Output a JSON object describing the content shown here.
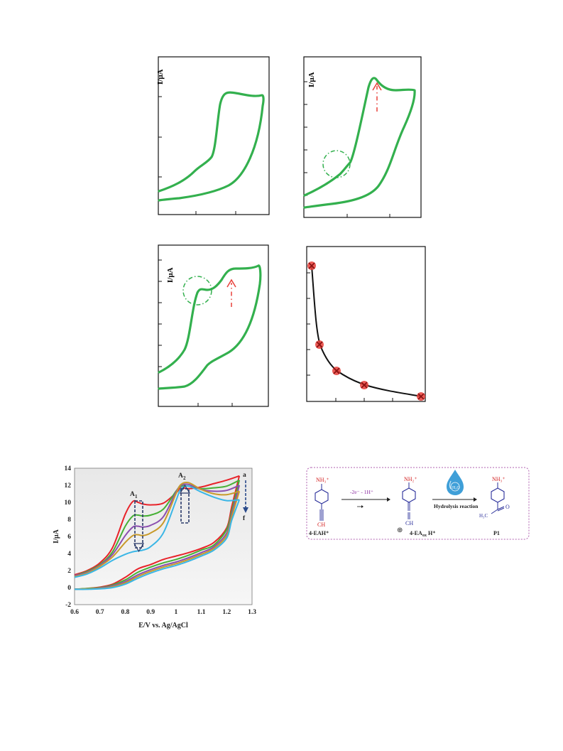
{
  "panels": {
    "top_left": {
      "ylabel": "I/µA"
    },
    "top_right": {
      "ylabel": "I/µA"
    },
    "mid_left": {
      "ylabel": "I/µA"
    }
  },
  "colors": {
    "cv_green": "#33b04e",
    "annotation_red": "#e8403a",
    "axis": "#111111",
    "scheme_border": "#b060b0",
    "molecule_blue": "#2a2f9a",
    "label_red": "#d42020",
    "reaction_purple": "#8a2aa0"
  },
  "chart_data": {
    "type": "line",
    "xlabel": "E/V vs. Ag/AgCl",
    "ylabel": "I/µA",
    "xlim": [
      0.6,
      1.3
    ],
    "ylim": [
      -2,
      14
    ],
    "x_ticks": [
      "0.6",
      "0.7",
      "0.8",
      "0.9",
      "1",
      "1.1",
      "1.2",
      "1.3"
    ],
    "y_ticks": [
      "-2",
      "0",
      "2",
      "4",
      "6",
      "8",
      "10",
      "12",
      "14"
    ],
    "annotations": {
      "peak1": "A",
      "peak1_sub": "1",
      "peak2": "A",
      "peak2_sub": "2",
      "start": "a",
      "end": "f"
    },
    "series": [
      {
        "color": "#e8232a",
        "x": [
          0.6,
          0.65,
          0.7,
          0.75,
          0.8,
          0.83,
          0.85,
          0.87,
          0.9,
          0.95,
          1.0,
          1.02,
          1.05,
          1.1,
          1.15,
          1.2,
          1.25
        ],
        "y": [
          1.5,
          2.0,
          2.9,
          4.7,
          8.6,
          10.1,
          10.0,
          9.8,
          9.7,
          9.9,
          11.1,
          11.7,
          11.6,
          11.8,
          12.2,
          12.6,
          13.1
        ],
        "rx": [
          1.25,
          1.22,
          1.2,
          1.15,
          1.1,
          1.05,
          1.0,
          0.95,
          0.9,
          0.85,
          0.8,
          0.75,
          0.7,
          0.65,
          0.6
        ],
        "ry": [
          13.1,
          9.5,
          7.0,
          5.3,
          4.6,
          4.1,
          3.7,
          3.3,
          2.7,
          2.2,
          1.2,
          0.4,
          0.05,
          -0.1,
          -0.2
        ]
      },
      {
        "color": "#46b035",
        "x": [
          0.6,
          0.65,
          0.7,
          0.75,
          0.8,
          0.83,
          0.85,
          0.87,
          0.9,
          0.95,
          1.0,
          1.02,
          1.05,
          1.1,
          1.15,
          1.2,
          1.25
        ],
        "y": [
          1.4,
          1.9,
          2.7,
          4.2,
          7.2,
          8.4,
          8.5,
          8.4,
          8.5,
          9.2,
          11.3,
          11.9,
          11.9,
          11.6,
          11.7,
          11.9,
          12.6
        ],
        "rx": [
          1.25,
          1.22,
          1.2,
          1.15,
          1.1,
          1.05,
          1.0,
          0.95,
          0.9,
          0.85,
          0.8,
          0.75,
          0.7,
          0.65,
          0.6
        ],
        "ry": [
          12.6,
          9.0,
          6.8,
          5.0,
          4.4,
          3.8,
          3.3,
          2.9,
          2.4,
          1.8,
          0.9,
          0.3,
          0.0,
          -0.1,
          -0.2
        ]
      },
      {
        "color": "#8b4fb0",
        "x": [
          0.6,
          0.65,
          0.7,
          0.75,
          0.8,
          0.83,
          0.85,
          0.87,
          0.9,
          0.95,
          1.0,
          1.02,
          1.05,
          1.1,
          1.15,
          1.2,
          1.25
        ],
        "y": [
          1.4,
          1.8,
          2.6,
          3.9,
          6.1,
          7.1,
          7.2,
          7.1,
          7.3,
          8.3,
          11.2,
          12.0,
          12.1,
          11.5,
          11.3,
          11.4,
          12.0
        ],
        "rx": [
          1.25,
          1.22,
          1.2,
          1.15,
          1.1,
          1.05,
          1.0,
          0.95,
          0.9,
          0.85,
          0.8,
          0.75,
          0.7,
          0.65,
          0.6
        ],
        "ry": [
          12.0,
          8.6,
          6.4,
          4.8,
          4.1,
          3.5,
          3.0,
          2.6,
          2.1,
          1.5,
          0.7,
          0.2,
          -0.05,
          -0.15,
          -0.2
        ]
      },
      {
        "color": "#c89a2a",
        "x": [
          0.6,
          0.65,
          0.7,
          0.75,
          0.8,
          0.83,
          0.85,
          0.87,
          0.9,
          0.95,
          1.0,
          1.02,
          1.05,
          1.1,
          1.15,
          1.2,
          1.25
        ],
        "y": [
          1.3,
          1.7,
          2.5,
          3.6,
          5.3,
          6.1,
          6.2,
          6.1,
          6.4,
          7.6,
          11.0,
          12.1,
          12.3,
          11.5,
          11.0,
          10.9,
          11.3
        ],
        "rx": [
          1.25,
          1.22,
          1.2,
          1.15,
          1.1,
          1.05,
          1.0,
          0.95,
          0.9,
          0.85,
          0.8,
          0.75,
          0.7,
          0.65,
          0.6
        ],
        "ry": [
          11.3,
          8.3,
          6.1,
          4.6,
          3.9,
          3.3,
          2.8,
          2.4,
          1.9,
          1.3,
          0.55,
          0.1,
          -0.1,
          -0.15,
          -0.2
        ]
      },
      {
        "color": "#3ab6e6",
        "x": [
          0.6,
          0.65,
          0.7,
          0.75,
          0.8,
          0.83,
          0.85,
          0.87,
          0.9,
          0.95,
          1.0,
          1.02,
          1.05,
          1.1,
          1.15,
          1.2,
          1.25
        ],
        "y": [
          1.2,
          1.6,
          2.3,
          3.2,
          3.9,
          4.2,
          4.3,
          4.4,
          4.8,
          6.4,
          10.2,
          11.6,
          11.9,
          11.2,
          10.6,
          10.2,
          10.3
        ],
        "rx": [
          1.25,
          1.22,
          1.2,
          1.15,
          1.1,
          1.05,
          1.0,
          0.95,
          0.9,
          0.85,
          0.8,
          0.75,
          0.7,
          0.65,
          0.6
        ],
        "ry": [
          10.3,
          7.9,
          5.8,
          4.4,
          3.7,
          3.1,
          2.6,
          2.2,
          1.7,
          1.1,
          0.4,
          0.0,
          -0.15,
          -0.2,
          -0.2
        ]
      }
    ]
  },
  "scheme": {
    "reactant_group": "NH₃⁺",
    "reactant_alkyne": "CH",
    "reactant_label": "4-EAH⁺",
    "step1": "-2e⁻ - 1H⁺",
    "intermediate_group": "NH₂⁺",
    "intermediate_end": "CH",
    "intermediate_label": "4-EA",
    "intermediate_sub": "ox",
    "intermediate_suffix": "H⁺",
    "charge": "⊕",
    "step2": "Hydrolysis reaction",
    "water": "H₂O",
    "product_group": "NH₃⁺",
    "product_methyl": "H₃C",
    "product_carbonyl": "O",
    "product_label": "P1"
  }
}
